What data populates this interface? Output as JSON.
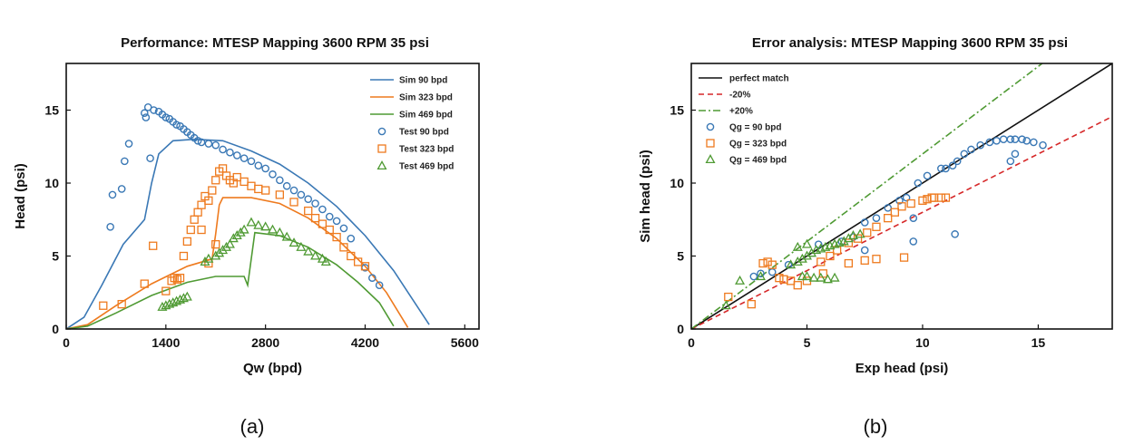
{
  "chart_data": [
    {
      "type": "scatter",
      "title": "Performance: MTESP Mapping 3600 RPM 35 psi",
      "xlabel": "Qw (bpd)",
      "ylabel": "Head (psi)",
      "xlim": [
        0,
        5800
      ],
      "ylim": [
        0,
        18.2
      ],
      "xticks": [
        0,
        1400,
        2800,
        4200,
        5600
      ],
      "yticks": [
        0,
        5,
        10,
        15
      ],
      "grid": false,
      "legend": "top-right",
      "caption": "(a)",
      "colors": {
        "blue": "#3a78b5",
        "orange": "#ee7a1e",
        "green": "#4f9a33"
      },
      "series": [
        {
          "name": "Sim 90 bpd",
          "kind": "line",
          "color": "#3a78b5",
          "x": [
            0,
            250,
            500,
            800,
            1100,
            1200,
            1300,
            1500,
            1800,
            2200,
            2600,
            3000,
            3400,
            3800,
            4200,
            4600,
            5100
          ],
          "y": [
            0,
            0.8,
            3.0,
            5.8,
            7.5,
            10.0,
            12.0,
            12.9,
            13.0,
            12.9,
            12.2,
            11.3,
            10.0,
            8.4,
            6.4,
            4.0,
            0.3
          ]
        },
        {
          "name": "Sim 323 bpd",
          "kind": "line",
          "color": "#ee7a1e",
          "x": [
            0,
            300,
            700,
            1200,
            1700,
            2050,
            2100,
            2150,
            2200,
            2600,
            3000,
            3400,
            3800,
            4200,
            4500,
            4800
          ],
          "y": [
            0,
            0.3,
            1.6,
            3.1,
            4.3,
            4.8,
            6.5,
            8.5,
            9.0,
            9.0,
            8.6,
            7.6,
            6.2,
            4.3,
            2.5,
            0.1
          ]
        },
        {
          "name": "Sim 469 bpd",
          "kind": "line",
          "color": "#4f9a33",
          "x": [
            0,
            300,
            700,
            1200,
            1700,
            2100,
            2500,
            2550,
            2650,
            3000,
            3400,
            3800,
            4100,
            4400,
            4600
          ],
          "y": [
            0,
            0.2,
            1.1,
            2.3,
            3.2,
            3.6,
            3.6,
            3.0,
            6.6,
            6.4,
            5.6,
            4.4,
            3.2,
            1.8,
            0.2
          ]
        },
        {
          "name": "Test 90 bpd",
          "kind": "scatter",
          "marker": "circle",
          "color": "#3a78b5",
          "x": [
            620,
            650,
            780,
            820,
            880,
            1100,
            1150,
            1230,
            1300,
            1350,
            1400,
            1450,
            1500,
            1550,
            1600,
            1650,
            1700,
            1750,
            1800,
            1850,
            1900,
            2000,
            2100,
            2200,
            2300,
            2400,
            2500,
            2600,
            2700,
            2800,
            2900,
            3000,
            3100,
            3200,
            3300,
            3400,
            3500,
            3600,
            3700,
            3800,
            3900,
            4000,
            4200,
            4300,
            4400,
            1120,
            1180
          ],
          "y": [
            7.0,
            9.2,
            9.6,
            11.5,
            12.7,
            14.8,
            15.2,
            15.0,
            14.9,
            14.7,
            14.5,
            14.4,
            14.2,
            14.0,
            13.9,
            13.7,
            13.5,
            13.3,
            13.1,
            12.9,
            12.8,
            12.7,
            12.6,
            12.3,
            12.1,
            11.9,
            11.7,
            11.5,
            11.2,
            11.0,
            10.6,
            10.2,
            9.8,
            9.5,
            9.2,
            8.9,
            8.6,
            8.2,
            7.7,
            7.4,
            6.9,
            6.2,
            4.2,
            3.5,
            3.0,
            14.5,
            11.7
          ]
        },
        {
          "name": "Test 323 bpd",
          "kind": "scatter",
          "marker": "square",
          "color": "#ee7a1e",
          "x": [
            520,
            780,
            1100,
            1220,
            1400,
            1480,
            1520,
            1560,
            1600,
            1650,
            1700,
            1750,
            1800,
            1850,
            1900,
            1950,
            2000,
            2050,
            2100,
            2150,
            2200,
            2250,
            2300,
            2350,
            2400,
            2500,
            2600,
            2700,
            2800,
            3000,
            3200,
            3400,
            3500,
            3600,
            3700,
            3800,
            3900,
            4000,
            4100,
            4200,
            1900,
            2000,
            2100
          ],
          "y": [
            1.6,
            1.7,
            3.1,
            5.7,
            2.6,
            3.3,
            3.5,
            3.4,
            3.5,
            5.0,
            6.0,
            6.8,
            7.5,
            8.0,
            8.5,
            9.1,
            8.8,
            9.5,
            10.2,
            10.8,
            11.0,
            10.5,
            10.2,
            10.0,
            10.4,
            10.1,
            9.8,
            9.6,
            9.5,
            9.2,
            8.7,
            8.1,
            7.6,
            7.2,
            6.8,
            6.3,
            5.6,
            5.0,
            4.6,
            4.3,
            6.8,
            4.5,
            5.8
          ]
        },
        {
          "name": "Test 469 bpd",
          "kind": "scatter",
          "marker": "triangle",
          "color": "#4f9a33",
          "x": [
            1350,
            1400,
            1450,
            1500,
            1550,
            1600,
            1650,
            1700,
            1950,
            2000,
            2100,
            2150,
            2200,
            2250,
            2300,
            2350,
            2400,
            2450,
            2500,
            2600,
            2700,
            2800,
            2900,
            3000,
            3100,
            3200,
            3300,
            3400,
            3500,
            3600,
            3650
          ],
          "y": [
            1.5,
            1.6,
            1.7,
            1.8,
            1.9,
            2.0,
            2.1,
            2.2,
            4.6,
            4.8,
            5.0,
            5.2,
            5.4,
            5.6,
            5.8,
            6.2,
            6.4,
            6.6,
            6.8,
            7.3,
            7.1,
            7.0,
            6.8,
            6.6,
            6.3,
            5.9,
            5.6,
            5.3,
            5.0,
            4.8,
            4.6
          ]
        }
      ]
    },
    {
      "type": "scatter",
      "title": "Error analysis: MTESP Mapping 3600 RPM 35 psi",
      "xlabel": "Exp head (psi)",
      "ylabel": "Sim head (psi)",
      "xlim": [
        0,
        18.2
      ],
      "ylim": [
        0,
        18.2
      ],
      "xticks": [
        0,
        5,
        10,
        15
      ],
      "yticks": [
        0,
        5,
        10,
        15
      ],
      "grid": false,
      "legend": "top-left",
      "caption": "(b)",
      "colors": {
        "blue": "#3a78b5",
        "orange": "#ee7a1e",
        "green": "#4f9a33",
        "black": "#111111",
        "red": "#d62728",
        "green_dash": "#4f9a33"
      },
      "series": [
        {
          "name": "perfect match",
          "kind": "line",
          "style": "solid",
          "color": "#111111",
          "x": [
            0,
            18.2
          ],
          "y": [
            0,
            18.2
          ]
        },
        {
          "name": "-20%",
          "kind": "line",
          "style": "dashed",
          "color": "#d62728",
          "x": [
            0,
            18.2
          ],
          "y": [
            0,
            14.56
          ]
        },
        {
          "name": "+20%",
          "kind": "line",
          "style": "dashdot",
          "color": "#4f9a33",
          "x": [
            0,
            15.17
          ],
          "y": [
            0,
            18.2
          ]
        },
        {
          "name": "Qg = 90 bpd",
          "kind": "scatter",
          "marker": "circle",
          "color": "#3a78b5",
          "x": [
            2.7,
            3.0,
            3.5,
            4.2,
            5.5,
            6.5,
            7.0,
            7.5,
            8.0,
            8.5,
            9.0,
            9.3,
            9.8,
            10.2,
            10.8,
            11.0,
            11.3,
            11.5,
            11.8,
            12.1,
            12.5,
            12.9,
            13.2,
            13.5,
            13.8,
            14.0,
            14.3,
            14.5,
            14.8,
            15.2,
            7.5,
            9.6,
            11.4,
            13.8,
            14.0,
            9.6
          ],
          "y": [
            3.6,
            3.8,
            3.9,
            4.4,
            5.8,
            6.0,
            6.3,
            7.3,
            7.6,
            8.3,
            8.8,
            9.0,
            10.0,
            10.5,
            11.0,
            11.0,
            11.2,
            11.5,
            12.0,
            12.3,
            12.6,
            12.8,
            12.9,
            13.0,
            13.0,
            13.0,
            13.0,
            12.9,
            12.8,
            12.6,
            5.4,
            6.0,
            6.5,
            11.5,
            12.0,
            7.6
          ]
        },
        {
          "name": "Qg = 323 bpd",
          "kind": "scatter",
          "marker": "square",
          "color": "#ee7a1e",
          "x": [
            1.6,
            3.1,
            3.3,
            3.5,
            3.8,
            4.0,
            4.3,
            4.6,
            5.0,
            5.6,
            6.0,
            6.3,
            6.8,
            7.2,
            7.6,
            8.0,
            8.5,
            8.8,
            9.1,
            9.5,
            10.0,
            10.2,
            10.4,
            10.5,
            10.8,
            11.0,
            5.7,
            6.8,
            7.5,
            8.0,
            9.2,
            2.6
          ],
          "y": [
            2.2,
            4.5,
            4.6,
            4.4,
            3.5,
            3.4,
            3.3,
            3.0,
            3.3,
            4.6,
            5.0,
            5.4,
            5.9,
            6.2,
            6.6,
            7.0,
            7.6,
            8.0,
            8.4,
            8.6,
            8.8,
            8.9,
            9.0,
            9.0,
            9.0,
            9.0,
            3.8,
            4.5,
            4.7,
            4.8,
            4.9,
            1.7
          ]
        },
        {
          "name": "Qg = 469 bpd",
          "kind": "scatter",
          "marker": "triangle",
          "color": "#4f9a33",
          "x": [
            1.5,
            2.1,
            3.0,
            4.3,
            4.6,
            4.8,
            5.0,
            5.2,
            5.4,
            5.6,
            5.8,
            6.0,
            6.2,
            6.4,
            6.6,
            6.8,
            7.0,
            7.3,
            4.8,
            5.0,
            5.3,
            5.6,
            5.9,
            6.2,
            5.0,
            4.6
          ],
          "y": [
            1.6,
            3.3,
            3.6,
            4.4,
            4.6,
            4.8,
            5.0,
            5.2,
            5.4,
            5.5,
            5.6,
            5.7,
            5.8,
            5.9,
            6.0,
            6.2,
            6.4,
            6.5,
            3.6,
            3.6,
            3.5,
            3.5,
            3.4,
            3.5,
            5.8,
            5.6
          ]
        }
      ]
    }
  ]
}
